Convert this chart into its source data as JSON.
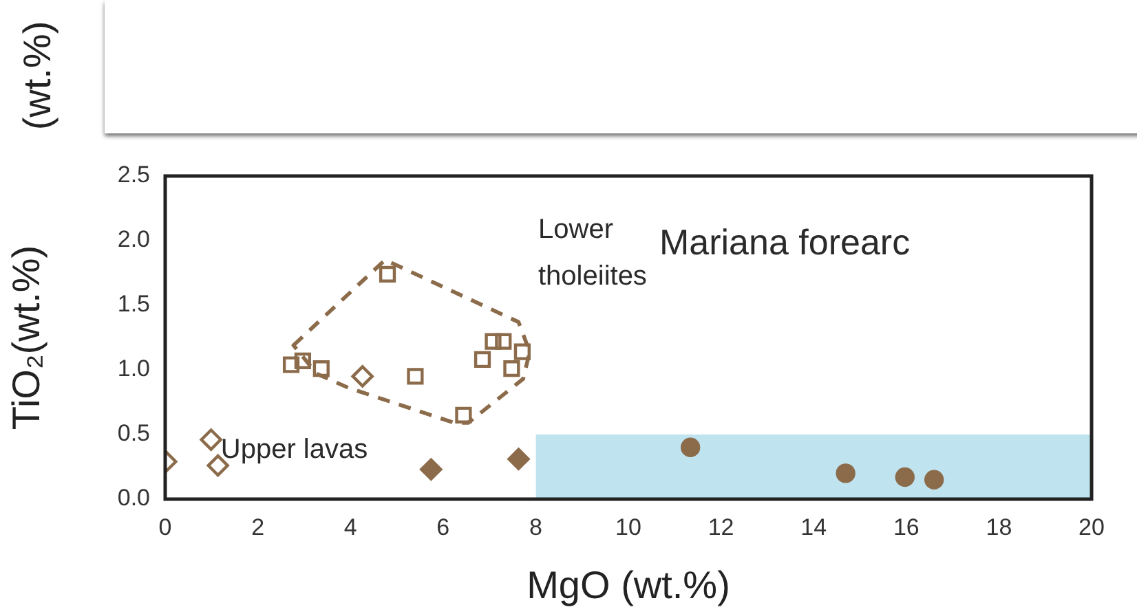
{
  "chart_data": {
    "type": "scatter",
    "xlabel": "MgO (wt.%)",
    "ylabel": "TiO₂(wt.%)",
    "xlim": [
      0,
      20
    ],
    "xticks": [
      0,
      2,
      4,
      6,
      8,
      10,
      12,
      14,
      16,
      18,
      20
    ],
    "ylim": [
      0,
      2.5
    ],
    "yticks": [
      {
        "value": 0,
        "label": "0.0"
      },
      {
        "value": 0.5,
        "label": "0.5"
      },
      {
        "value": 1,
        "label": "1.0"
      },
      {
        "value": 1.5,
        "label": "1.5"
      },
      {
        "value": 2,
        "label": "2.0"
      },
      {
        "value": 2.5,
        "label": "2.5"
      }
    ],
    "grid": false,
    "legend": false,
    "series": [
      {
        "type": "area",
        "color": "#bfe4f0",
        "x": [
          8,
          20
        ],
        "values": [
          0.5,
          0.5
        ],
        "marker": "none"
      },
      {
        "type": "scatter",
        "color": "#8b6b4a",
        "marker": "square",
        "x": [
          2.72,
          2.97,
          3.37,
          4.8,
          5.4,
          6.44,
          6.85,
          7.08,
          7.3,
          7.48,
          7.71
        ],
        "values": [
          1.04,
          1.07,
          1.01,
          1.74,
          0.95,
          0.65,
          1.08,
          1.22,
          1.22,
          1.01,
          1.14
        ]
      },
      {
        "type": "scatter",
        "color": "#8b6b4a",
        "marker": "diamond",
        "x": [
          0.02,
          0.99,
          1.14,
          4.26
        ],
        "values": [
          0.29,
          0.46,
          0.26,
          0.95
        ]
      },
      {
        "type": "scatter",
        "color": "#8b6b4a",
        "marker": "diamond",
        "x": [
          5.74,
          7.63
        ],
        "values": [
          0.23,
          0.31
        ]
      },
      {
        "type": "scatter",
        "color": "#8b6b4a",
        "marker": "circle",
        "x": [
          11.34,
          14.69,
          15.97,
          16.6
        ],
        "values": [
          0.4,
          0.2,
          0.17,
          0.15
        ]
      }
    ],
    "annotations": [
      "(wt.%)",
      "Lower tholeiites",
      "Mariana forearc",
      {
        "text": "Upper lavas",
        "x": 1.2,
        "y": 0.38
      }
    ]
  }
}
